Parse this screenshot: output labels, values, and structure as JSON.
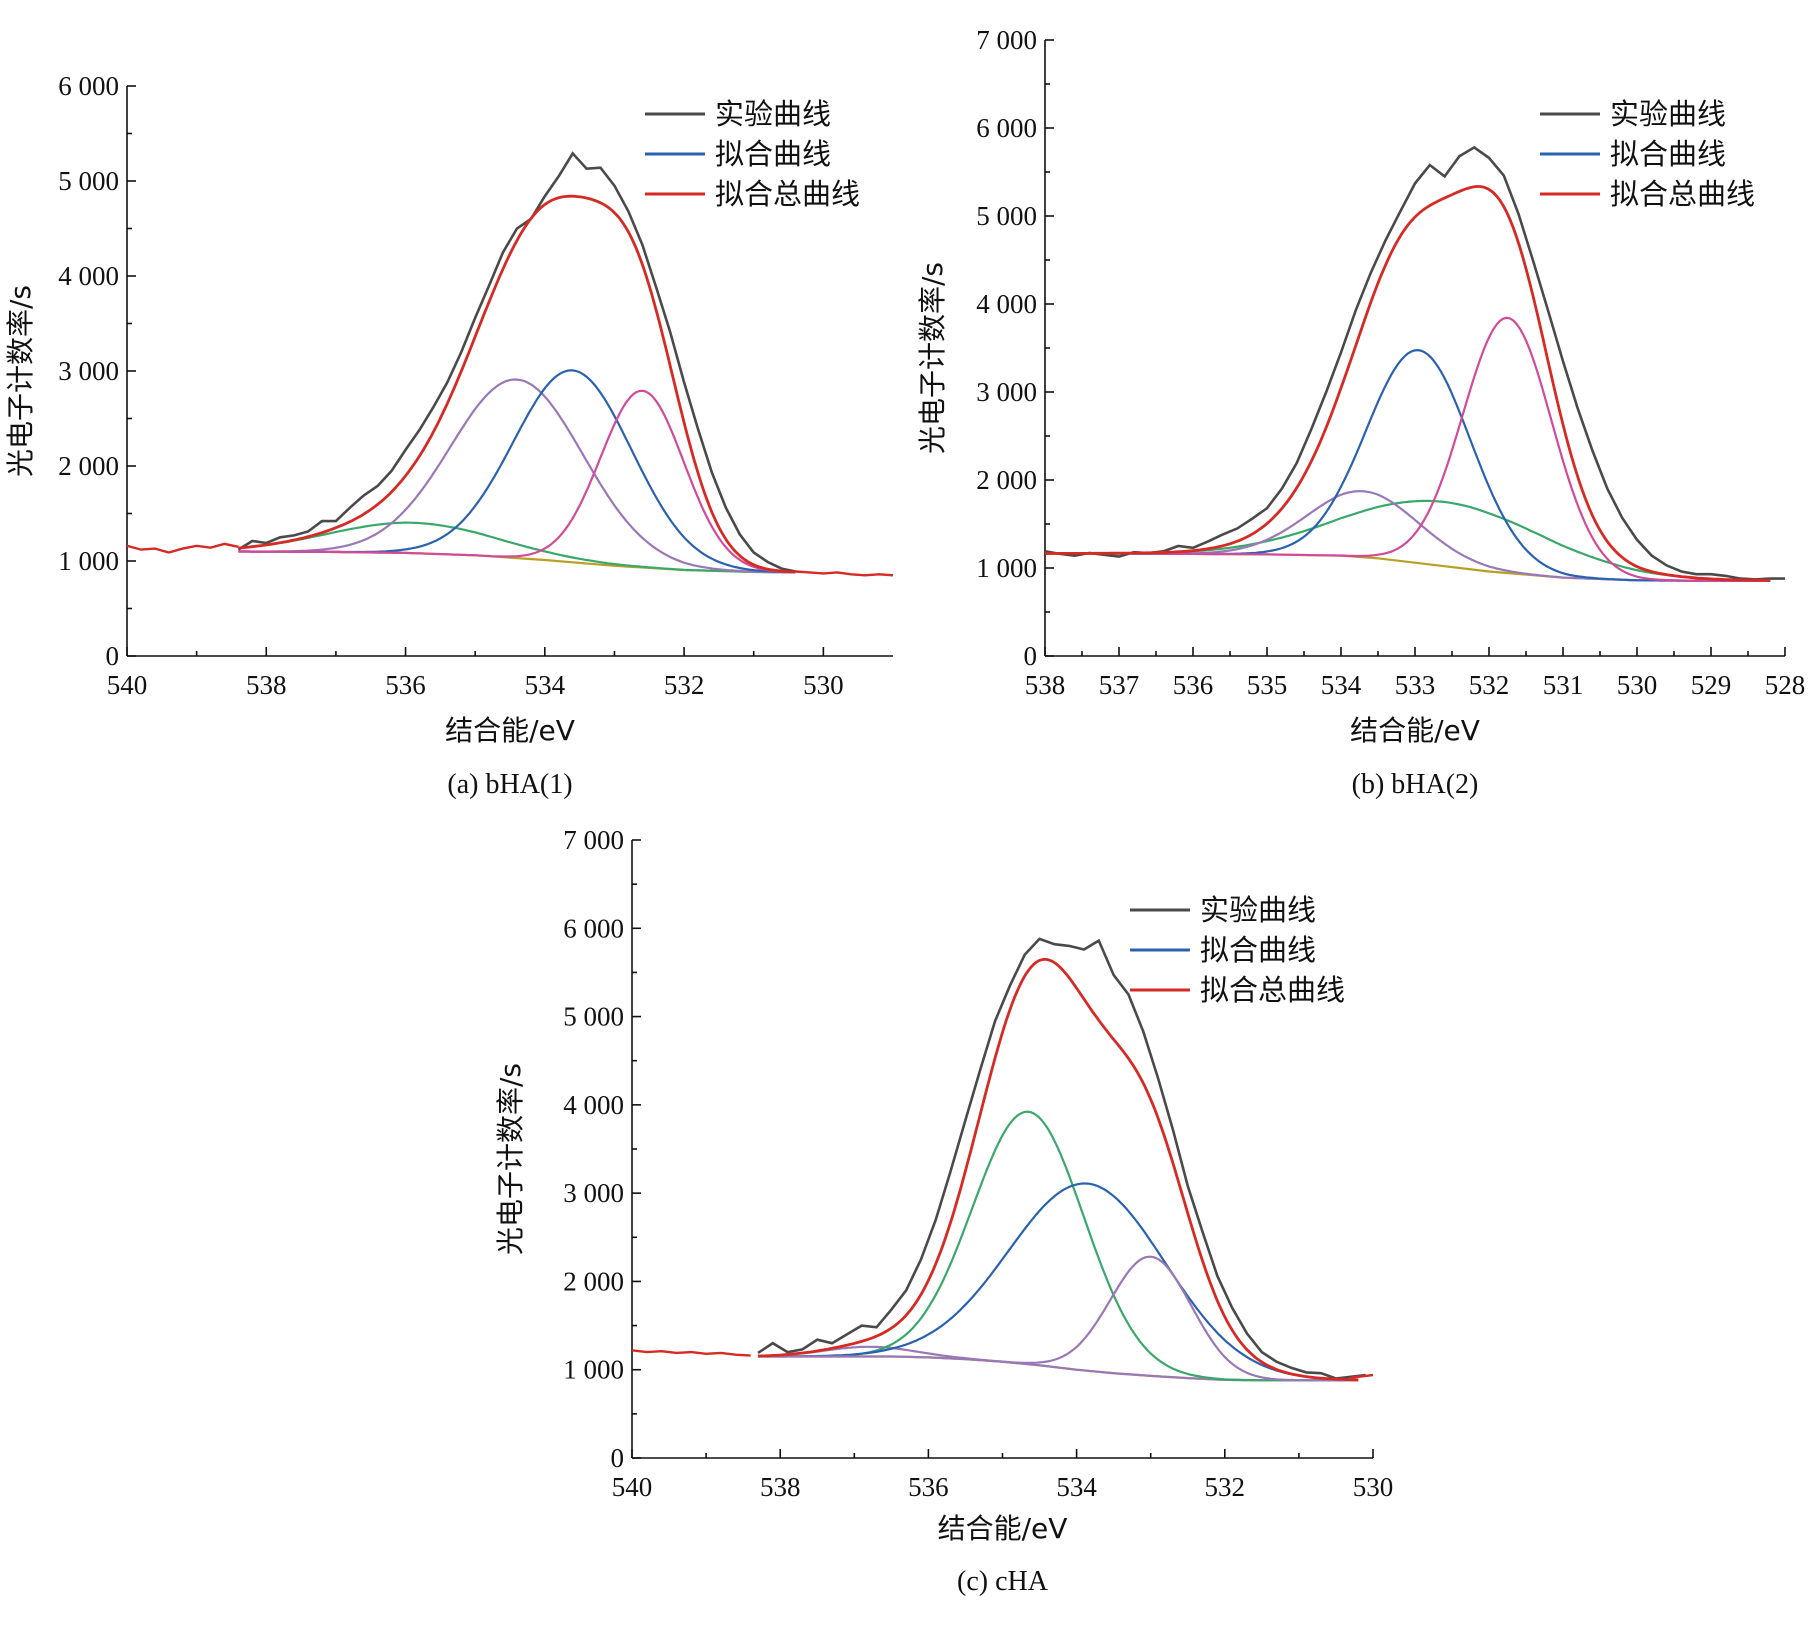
{
  "chart_data": [
    {
      "id": "a",
      "type": "line",
      "caption": "(a) bHA(1)",
      "xlabel": "结合能/eV",
      "ylabel": "光电子计数率/s",
      "xlim": [
        540,
        529
      ],
      "ylim": [
        0,
        6000
      ],
      "x_ticks": [
        540,
        538,
        536,
        534,
        532,
        530
      ],
      "y_ticks": [
        0,
        1000,
        2000,
        3000,
        4000,
        5000,
        6000
      ],
      "y_tick_labels": [
        "0",
        "1 000",
        "2 000",
        "3 000",
        "4 000",
        "5 000",
        "6 000"
      ],
      "legend": [
        {
          "label": "实验曲线",
          "color": "#4a4a4a"
        },
        {
          "label": "拟合曲线",
          "color": "#2a62b0"
        },
        {
          "label": "拟合总曲线",
          "color": "#d62a24"
        }
      ],
      "baseline": {
        "color": "#b8a024",
        "x": [
          538.4,
          537,
          536,
          535,
          534,
          533,
          532,
          531,
          530.4
        ],
        "y": [
          1100,
          1095,
          1085,
          1060,
          1010,
          950,
          905,
          885,
          880
        ]
      },
      "components": [
        {
          "color": "#3aa86a",
          "center": 535.9,
          "amp": 320,
          "sigma": 1.2
        },
        {
          "color": "#9a78b8",
          "center": 534.4,
          "amp": 1880,
          "sigma": 0.95
        },
        {
          "color": "#2a62b0",
          "center": 533.6,
          "amp": 2020,
          "sigma": 0.85
        },
        {
          "color": "#d24a9a",
          "center": 532.6,
          "amp": 1860,
          "sigma": 0.6
        }
      ],
      "experimental": {
        "color": "#4a4a4a",
        "x": [
          538.4,
          538.2,
          538,
          537.8,
          537.6,
          537.4,
          537.2,
          537,
          536.8,
          536.6,
          536.4,
          536.2,
          536,
          535.8,
          535.6,
          535.4,
          535.2,
          535,
          534.8,
          534.6,
          534.4,
          534.2,
          534,
          533.8,
          533.6,
          533.4,
          533.2,
          533,
          532.8,
          532.6,
          532.4,
          532.2,
          532,
          531.8,
          531.6,
          531.4,
          531.2,
          531,
          530.8,
          530.6,
          530.4
        ],
        "y": [
          1120,
          1210,
          1190,
          1250,
          1270,
          1310,
          1420,
          1420,
          1560,
          1690,
          1790,
          1950,
          2170,
          2380,
          2620,
          2880,
          3200,
          3560,
          3900,
          4250,
          4500,
          4600,
          4840,
          5050,
          5290,
          5130,
          5140,
          4950,
          4680,
          4330,
          3880,
          3410,
          2880,
          2390,
          1930,
          1560,
          1280,
          1090,
          990,
          920,
          890
        ]
      },
      "outer_trace": {
        "color": "#d62a24",
        "x": [
          540,
          539.8,
          539.6,
          539.4,
          539.2,
          539,
          538.8,
          538.6,
          538.4,
          530.4,
          530.2,
          530,
          529.8,
          529.6,
          529.4,
          529.2,
          529
        ],
        "y": [
          1160,
          1120,
          1130,
          1090,
          1130,
          1160,
          1140,
          1180,
          1150,
          890,
          880,
          870,
          880,
          860,
          850,
          860,
          850
        ]
      }
    },
    {
      "id": "b",
      "type": "line",
      "caption": "(b) bHA(2)",
      "xlabel": "结合能/eV",
      "ylabel": "光电子计数率/s",
      "xlim": [
        538,
        528
      ],
      "ylim": [
        0,
        7000
      ],
      "x_ticks": [
        538,
        537,
        536,
        535,
        534,
        533,
        532,
        531,
        530,
        529,
        528
      ],
      "y_ticks": [
        0,
        1000,
        2000,
        3000,
        4000,
        5000,
        6000,
        7000
      ],
      "y_tick_labels": [
        "0",
        "1 000",
        "2 000",
        "3 000",
        "4 000",
        "5 000",
        "6 000",
        "7 000"
      ],
      "legend": [
        {
          "label": "实验曲线",
          "color": "#4a4a4a"
        },
        {
          "label": "拟合曲线",
          "color": "#2a62b0"
        },
        {
          "label": "拟合总曲线",
          "color": "#d62a24"
        }
      ],
      "baseline": {
        "color": "#b8a024",
        "x": [
          538,
          537,
          536,
          535,
          534,
          533.5,
          533,
          532,
          531,
          530,
          529,
          528.2
        ],
        "y": [
          1165,
          1165,
          1160,
          1155,
          1140,
          1110,
          1060,
          960,
          890,
          860,
          855,
          855
        ]
      },
      "components": [
        {
          "color": "#3aa86a",
          "center": 532.6,
          "amp": 730,
          "sigma": 1.35
        },
        {
          "color": "#9a78b8",
          "center": 533.7,
          "amp": 750,
          "sigma": 0.75
        },
        {
          "color": "#2a62b0",
          "center": 532.95,
          "amp": 2420,
          "sigma": 0.7
        },
        {
          "color": "#d24a9a",
          "center": 531.75,
          "amp": 2900,
          "sigma": 0.6
        }
      ],
      "experimental": {
        "color": "#4a4a4a",
        "x": [
          538,
          537.8,
          537.6,
          537.4,
          537.2,
          537,
          536.8,
          536.6,
          536.4,
          536.2,
          536,
          535.8,
          535.6,
          535.4,
          535.2,
          535,
          534.8,
          534.6,
          534.4,
          534.2,
          534,
          533.8,
          533.6,
          533.4,
          533.2,
          533,
          532.8,
          532.6,
          532.4,
          532.2,
          532,
          531.8,
          531.6,
          531.4,
          531.2,
          531,
          530.8,
          530.6,
          530.4,
          530.2,
          530,
          529.8,
          529.6,
          529.4,
          529.2,
          529,
          528.8,
          528.6,
          528.4,
          528.2,
          528
        ],
        "y": [
          1190,
          1160,
          1140,
          1170,
          1150,
          1130,
          1180,
          1170,
          1190,
          1250,
          1230,
          1300,
          1380,
          1450,
          1560,
          1680,
          1900,
          2190,
          2580,
          3000,
          3450,
          3930,
          4350,
          4720,
          5050,
          5370,
          5580,
          5450,
          5680,
          5780,
          5660,
          5460,
          5020,
          4480,
          3920,
          3350,
          2810,
          2330,
          1900,
          1570,
          1320,
          1140,
          1030,
          960,
          930,
          930,
          910,
          880,
          870,
          880,
          880
        ]
      },
      "outer_trace": {
        "color": "#d62a24",
        "x": [],
        "y": []
      }
    },
    {
      "id": "c",
      "type": "line",
      "caption": "(c) cHA",
      "xlabel": "结合能/eV",
      "ylabel": "光电子计数率/s",
      "xlim": [
        540,
        530
      ],
      "ylim": [
        0,
        7000
      ],
      "x_ticks": [
        540,
        538,
        536,
        534,
        532,
        530
      ],
      "y_ticks": [
        0,
        1000,
        2000,
        3000,
        4000,
        5000,
        6000,
        7000
      ],
      "y_tick_labels": [
        "0",
        "1 000",
        "2 000",
        "3 000",
        "4 000",
        "5 000",
        "6 000",
        "7 000"
      ],
      "legend": [
        {
          "label": "实验曲线",
          "color": "#4a4a4a"
        },
        {
          "label": "拟合曲线",
          "color": "#2a62b0"
        },
        {
          "label": "拟合总曲线",
          "color": "#d62a24"
        }
      ],
      "baseline": {
        "color": "#b8a024",
        "x": [
          538.3,
          537.5,
          537,
          536.5,
          536,
          535.5,
          535,
          534.5,
          534,
          533.5,
          533,
          532.5,
          532,
          531.5,
          531,
          530.5,
          530.2
        ],
        "y": [
          1150,
          1150,
          1150,
          1150,
          1140,
          1120,
          1090,
          1050,
          1000,
          960,
          930,
          905,
          885,
          880,
          880,
          880,
          880
        ]
      },
      "components": [
        {
          "color": "#9a78b8",
          "center": 536.8,
          "amp": 110,
          "sigma": 0.6
        },
        {
          "color": "#3aa86a",
          "center": 534.65,
          "amp": 2860,
          "sigma": 0.75
        },
        {
          "color": "#2a62b0",
          "center": 533.85,
          "amp": 2120,
          "sigma": 1.05
        },
        {
          "color": "#9a78b8",
          "center": 533.0,
          "amp": 1350,
          "sigma": 0.55
        }
      ],
      "experimental": {
        "color": "#4a4a4a",
        "x": [
          538.3,
          538.1,
          537.9,
          537.7,
          537.5,
          537.3,
          537.1,
          536.9,
          536.7,
          536.5,
          536.3,
          536.1,
          535.9,
          535.7,
          535.5,
          535.3,
          535.1,
          534.9,
          534.7,
          534.5,
          534.3,
          534.1,
          533.9,
          533.7,
          533.5,
          533.3,
          533.1,
          532.9,
          532.7,
          532.5,
          532.3,
          532.1,
          531.9,
          531.7,
          531.5,
          531.3,
          531.1,
          530.9,
          530.7,
          530.5,
          530.3,
          530.1
        ],
        "y": [
          1190,
          1300,
          1200,
          1230,
          1340,
          1300,
          1400,
          1500,
          1480,
          1680,
          1900,
          2250,
          2700,
          3250,
          3830,
          4400,
          4950,
          5350,
          5700,
          5880,
          5820,
          5800,
          5760,
          5860,
          5470,
          5250,
          4830,
          4300,
          3720,
          3080,
          2560,
          2060,
          1700,
          1410,
          1200,
          1090,
          1020,
          970,
          960,
          900,
          920,
          940
        ]
      },
      "outer_trace": {
        "color": "#d62a24",
        "x": [
          540,
          539.8,
          539.6,
          539.4,
          539.2,
          539,
          538.8,
          538.6,
          538.4,
          530.3,
          530.1,
          530
        ],
        "y": [
          1220,
          1200,
          1210,
          1190,
          1200,
          1180,
          1190,
          1170,
          1160,
          910,
          930,
          940
        ]
      }
    }
  ]
}
